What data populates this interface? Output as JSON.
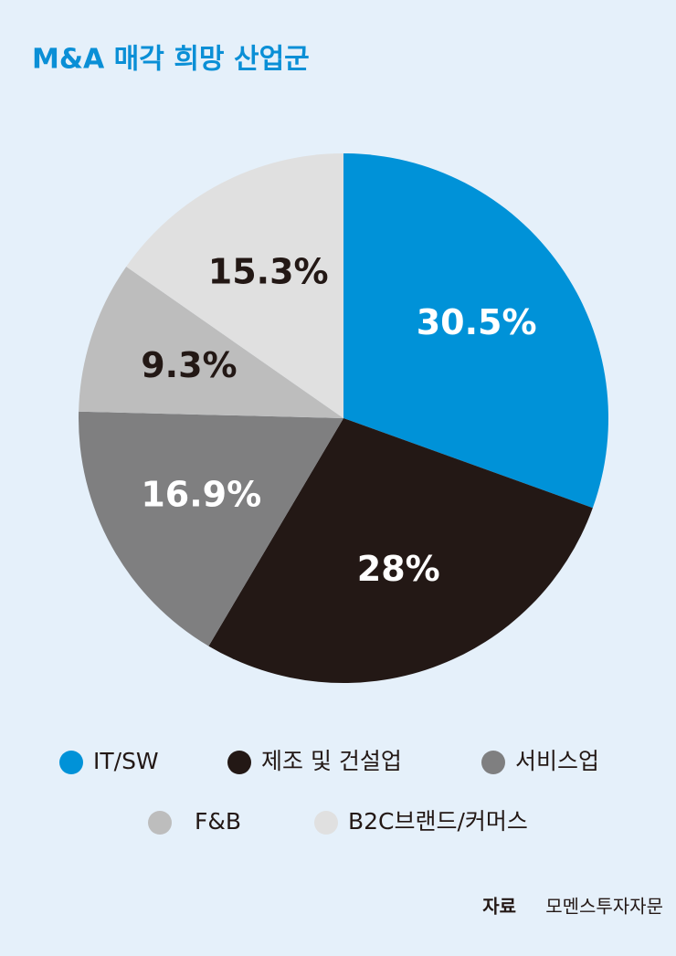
{
  "chart_data": {
    "type": "pie",
    "title": "M&A 매각 희망 산업군",
    "categories": [
      "IT/SW",
      "제조 및 건설업",
      "서비스업",
      "F&B",
      "B2C브랜드/커머스"
    ],
    "values": [
      30.5,
      28,
      16.9,
      9.3,
      15.3
    ],
    "value_labels": [
      "30.5%",
      "28%",
      "16.9%",
      "9.3%",
      "15.3%"
    ],
    "colors": [
      "#0092d8",
      "#231815",
      "#7f7f80",
      "#bdbdbd",
      "#e0e0e0"
    ],
    "source_label": "자료",
    "source": "모멘스투자자문"
  }
}
